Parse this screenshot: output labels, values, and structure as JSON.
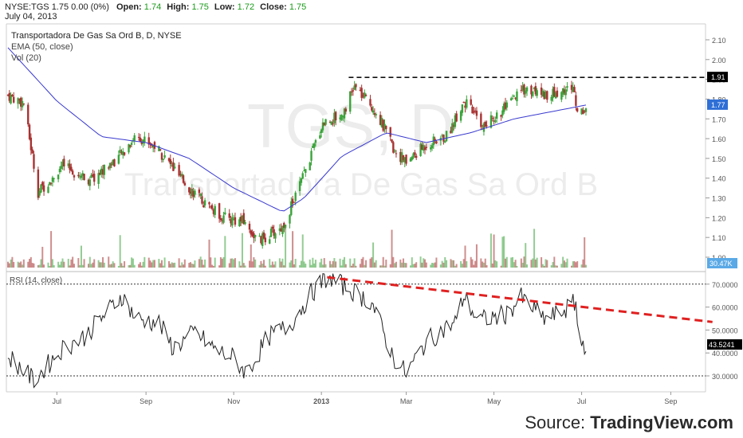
{
  "header": {
    "symbol": "NYSE:TGS",
    "last": "1.75",
    "change": "0.00 (0%)",
    "open_label": "Open:",
    "open": "1.74",
    "high_label": "High:",
    "high": "1.75",
    "low_label": "Low:",
    "low": "1.72",
    "close_label": "Close:",
    "close": "1.75",
    "date": "July 04, 2013"
  },
  "source": {
    "prefix": "Source: ",
    "brand": "TradingView.com"
  },
  "colors": {
    "up": "#3aa33a",
    "down": "#a83232",
    "ema": "#3a3ad0",
    "rsi_line": "#222222",
    "trend": "#e02020",
    "ema_badge": "#2f6fd6",
    "vol_badge": "#5aa9e6",
    "level_badge": "#000000"
  },
  "chart_data": [
    {
      "type": "candlestick",
      "title": "Transportadora De Gas Sa Ord B, D, NYSE",
      "legend": [
        "EMA (50, close)",
        "Vol (20)"
      ],
      "watermark_symbol": "TGS, D",
      "watermark_name": "Transportadora De Gas Sa Ord B",
      "x_tick_labels": [
        "Jul",
        "Sep",
        "Nov",
        "2013",
        "Mar",
        "May",
        "Jul",
        "Sep"
      ],
      "y_tick_labels": [
        "1.00",
        "1.10",
        "1.20",
        "1.30",
        "1.40",
        "1.50",
        "1.60",
        "1.70",
        "1.80",
        "1.90",
        "2.00",
        "2.10"
      ],
      "ylim": [
        0.95,
        2.15
      ],
      "resistance_level": 1.91,
      "resistance_label": "1.91",
      "ema_last": 1.77,
      "ema_last_label": "1.77",
      "volume_last_label": "30.47K",
      "close_anchors": [
        {
          "x": "2012-05-28",
          "close": 1.82
        },
        {
          "x": "2012-06-08",
          "close": 1.78
        },
        {
          "x": "2012-06-18",
          "close": 1.33
        },
        {
          "x": "2012-07-05",
          "close": 1.46
        },
        {
          "x": "2012-07-25",
          "close": 1.39
        },
        {
          "x": "2012-08-15",
          "close": 1.52
        },
        {
          "x": "2012-08-25",
          "close": 1.62
        },
        {
          "x": "2012-09-08",
          "close": 1.56
        },
        {
          "x": "2012-09-25",
          "close": 1.4
        },
        {
          "x": "2012-10-12",
          "close": 1.27
        },
        {
          "x": "2012-10-25",
          "close": 1.2
        },
        {
          "x": "2012-11-08",
          "close": 1.18
        },
        {
          "x": "2012-11-18",
          "close": 1.08
        },
        {
          "x": "2012-12-05",
          "close": 1.15
        },
        {
          "x": "2012-12-20",
          "close": 1.42
        },
        {
          "x": "2013-01-02",
          "close": 1.68
        },
        {
          "x": "2013-01-15",
          "close": 1.72
        },
        {
          "x": "2013-01-24",
          "close": 1.86
        },
        {
          "x": "2013-02-08",
          "close": 1.74
        },
        {
          "x": "2013-02-20",
          "close": 1.55
        },
        {
          "x": "2013-03-01",
          "close": 1.48
        },
        {
          "x": "2013-03-15",
          "close": 1.57
        },
        {
          "x": "2013-03-29",
          "close": 1.61
        },
        {
          "x": "2013-04-10",
          "close": 1.79
        },
        {
          "x": "2013-04-24",
          "close": 1.66
        },
        {
          "x": "2013-05-10",
          "close": 1.76
        },
        {
          "x": "2013-05-22",
          "close": 1.85
        },
        {
          "x": "2013-06-10",
          "close": 1.82
        },
        {
          "x": "2013-06-25",
          "close": 1.86
        },
        {
          "x": "2013-06-28",
          "close": 1.74
        },
        {
          "x": "2013-07-04",
          "close": 1.75
        }
      ],
      "ema_anchors": [
        {
          "x": "2012-05-28",
          "y": 2.06
        },
        {
          "x": "2012-07-01",
          "y": 1.79
        },
        {
          "x": "2012-08-01",
          "y": 1.61
        },
        {
          "x": "2012-09-01",
          "y": 1.58
        },
        {
          "x": "2012-10-01",
          "y": 1.5
        },
        {
          "x": "2012-11-01",
          "y": 1.35
        },
        {
          "x": "2012-12-05",
          "y": 1.23
        },
        {
          "x": "2012-12-20",
          "y": 1.3
        },
        {
          "x": "2013-01-15",
          "y": 1.51
        },
        {
          "x": "2013-02-15",
          "y": 1.63
        },
        {
          "x": "2013-03-15",
          "y": 1.58
        },
        {
          "x": "2013-04-15",
          "y": 1.63
        },
        {
          "x": "2013-05-15",
          "y": 1.7
        },
        {
          "x": "2013-07-04",
          "y": 1.77
        }
      ]
    },
    {
      "type": "line",
      "title": "RSI (14, close)",
      "y_tick_labels": [
        "30.0000",
        "40.0000",
        "50.0000",
        "60.0000",
        "70.0000"
      ],
      "ylim": [
        24,
        77
      ],
      "overbought": 70,
      "oversold": 30,
      "last_label": "43.5241",
      "last": 43.5241,
      "rsi_anchors": [
        {
          "x": "2012-05-28",
          "y": 39
        },
        {
          "x": "2012-06-15",
          "y": 28
        },
        {
          "x": "2012-07-05",
          "y": 42
        },
        {
          "x": "2012-07-20",
          "y": 47
        },
        {
          "x": "2012-08-05",
          "y": 58
        },
        {
          "x": "2012-08-15",
          "y": 65
        },
        {
          "x": "2012-08-25",
          "y": 55
        },
        {
          "x": "2012-09-10",
          "y": 53
        },
        {
          "x": "2012-09-20",
          "y": 42
        },
        {
          "x": "2012-10-05",
          "y": 49
        },
        {
          "x": "2012-10-20",
          "y": 41
        },
        {
          "x": "2012-11-01",
          "y": 38
        },
        {
          "x": "2012-11-10",
          "y": 31
        },
        {
          "x": "2012-11-25",
          "y": 47
        },
        {
          "x": "2012-12-10",
          "y": 52
        },
        {
          "x": "2012-12-25",
          "y": 66
        },
        {
          "x": "2013-01-05",
          "y": 73
        },
        {
          "x": "2013-01-20",
          "y": 68
        },
        {
          "x": "2013-02-05",
          "y": 62
        },
        {
          "x": "2013-02-20",
          "y": 38
        },
        {
          "x": "2013-03-01",
          "y": 31
        },
        {
          "x": "2013-03-15",
          "y": 45
        },
        {
          "x": "2013-04-05",
          "y": 54
        },
        {
          "x": "2013-04-10",
          "y": 65
        },
        {
          "x": "2013-04-20",
          "y": 54
        },
        {
          "x": "2013-05-10",
          "y": 57
        },
        {
          "x": "2013-05-20",
          "y": 64
        },
        {
          "x": "2013-06-05",
          "y": 55
        },
        {
          "x": "2013-06-15",
          "y": 57
        },
        {
          "x": "2013-06-22",
          "y": 60
        },
        {
          "x": "2013-06-27",
          "y": 62
        },
        {
          "x": "2013-06-29",
          "y": 43
        },
        {
          "x": "2013-07-02",
          "y": 44
        },
        {
          "x": "2013-07-04",
          "y": 43.5
        }
      ],
      "trendline": {
        "x_start": "2013-01-05",
        "y_start": 73,
        "x_end": "2013-09-30",
        "y_end": 53.5
      }
    }
  ]
}
